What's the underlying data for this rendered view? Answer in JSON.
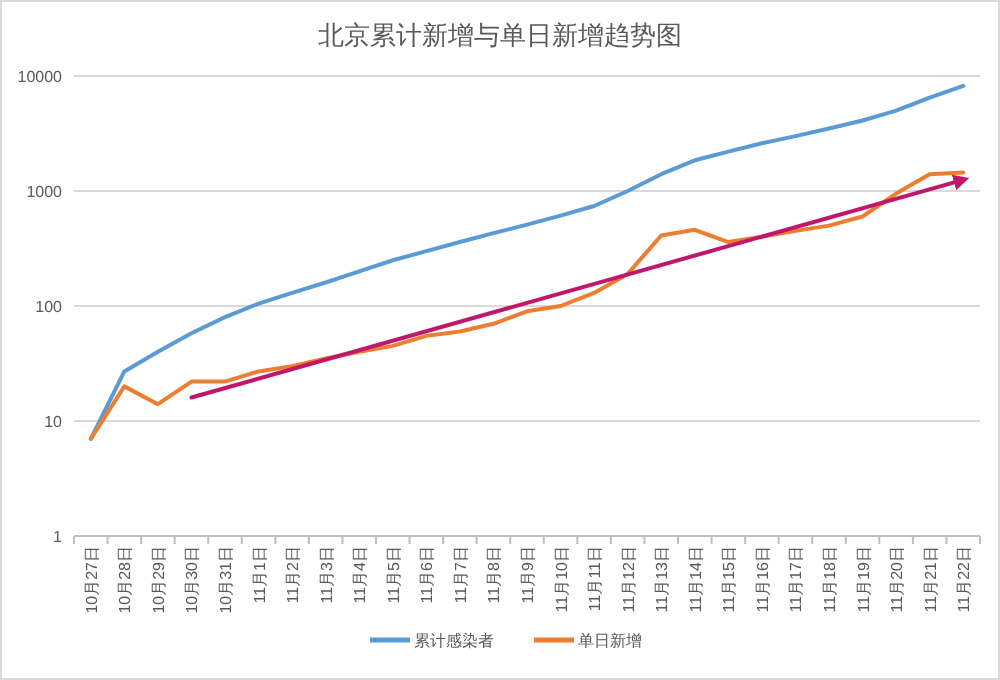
{
  "chart_data": {
    "type": "line",
    "title": "北京累计新增与单日新增趋势图",
    "categories": [
      "10月27日",
      "10月28日",
      "10月29日",
      "10月30日",
      "10月31日",
      "11月1日",
      "11月2日",
      "11月3日",
      "11月4日",
      "11月5日",
      "11月6日",
      "11月7日",
      "11月8日",
      "11月9日",
      "11月10日",
      "11月11日",
      "11月12日",
      "11月13日",
      "11月14日",
      "11月15日",
      "11月16日",
      "11月17日",
      "11月18日",
      "11月19日",
      "11月20日",
      "11月21日",
      "11月22日"
    ],
    "series": [
      {
        "name": "累计感染者",
        "color": "#5b9bd5",
        "values": [
          7,
          27,
          40,
          58,
          80,
          105,
          130,
          160,
          200,
          250,
          300,
          360,
          430,
          510,
          610,
          740,
          1000,
          1400,
          1850,
          2200,
          2600,
          3000,
          3500,
          4100,
          5000,
          6500,
          8200
        ]
      },
      {
        "name": "单日新增",
        "color": "#ed7d31",
        "values": [
          7,
          20,
          14,
          22,
          22,
          27,
          30,
          35,
          40,
          45,
          55,
          60,
          70,
          90,
          100,
          130,
          190,
          410,
          460,
          360,
          400,
          450,
          500,
          600,
          950,
          1400,
          1450
        ]
      },
      {
        "color": "#c0166b",
        "x": [
          "10月30日",
          "11月22日"
        ],
        "values": [
          16,
          1250
        ]
      }
    ],
    "log": true,
    "ylim": [
      1,
      10000
    ],
    "yticks": [
      1,
      10,
      100,
      1000,
      10000
    ],
    "grid": "y",
    "legend": "bottom"
  }
}
